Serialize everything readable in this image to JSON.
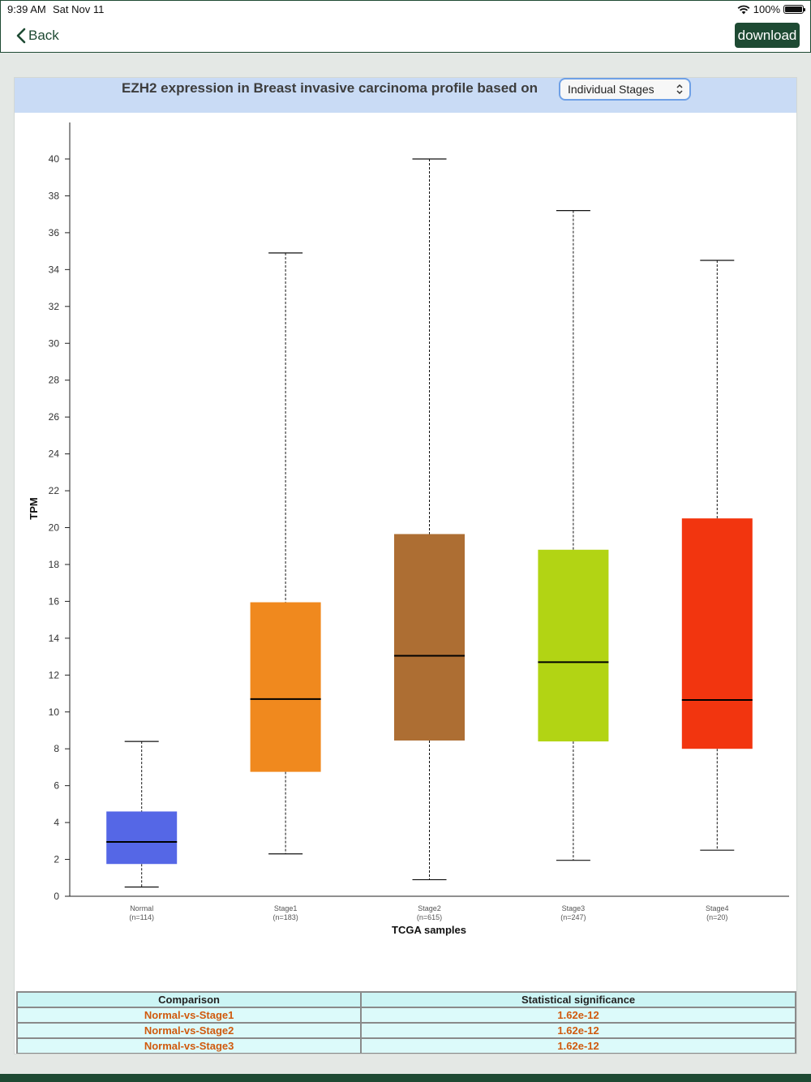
{
  "status_bar": {
    "time": "9:39 AM",
    "date": "Sat Nov 11",
    "battery": "100%"
  },
  "nav": {
    "back_label": "Back",
    "download_label": "download"
  },
  "header": {
    "title": "EZH2 expression in Breast invasive carcinoma profile based on",
    "select_value": "Individual Stages"
  },
  "chart_data": {
    "type": "boxplot",
    "ylabel": "TPM",
    "xlabel": "TCGA samples",
    "ylim": [
      0,
      40
    ],
    "yticks": [
      0,
      2,
      4,
      6,
      8,
      10,
      12,
      14,
      16,
      18,
      20,
      22,
      24,
      26,
      28,
      30,
      32,
      34,
      36,
      38,
      40
    ],
    "grid": false,
    "categories": [
      {
        "name": "Normal",
        "n": "(n=114)",
        "color": "#5567e6",
        "min": 0.5,
        "q1": 1.75,
        "median": 2.95,
        "q3": 4.6,
        "max": 8.4
      },
      {
        "name": "Stage1",
        "n": "(n=183)",
        "color": "#f0891e",
        "min": 2.3,
        "q1": 6.75,
        "median": 10.7,
        "q3": 15.95,
        "max": 34.9
      },
      {
        "name": "Stage2",
        "n": "(n=615)",
        "color": "#ad6e33",
        "min": 0.9,
        "q1": 8.45,
        "median": 13.05,
        "q3": 19.65,
        "max": 40.0
      },
      {
        "name": "Stage3",
        "n": "(n=247)",
        "color": "#b2d414",
        "min": 1.95,
        "q1": 8.4,
        "median": 12.7,
        "q3": 18.8,
        "max": 37.2
      },
      {
        "name": "Stage4",
        "n": "(n=20)",
        "color": "#f2350f",
        "min": 2.5,
        "q1": 8.0,
        "median": 10.65,
        "q3": 20.5,
        "max": 34.5
      }
    ]
  },
  "table": {
    "headers": [
      "Comparison",
      "Statistical significance"
    ],
    "rows": [
      [
        "Normal-vs-Stage1",
        "1.62e-12"
      ],
      [
        "Normal-vs-Stage2",
        "1.62e-12"
      ],
      [
        "Normal-vs-Stage3",
        "1.62e-12"
      ]
    ]
  }
}
